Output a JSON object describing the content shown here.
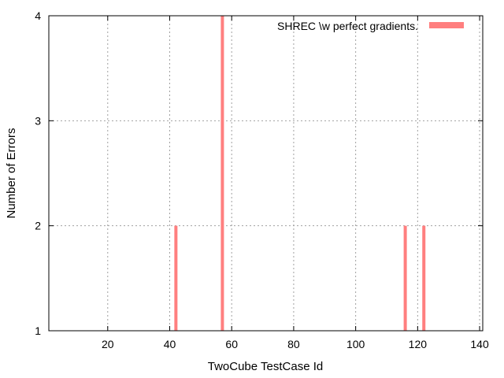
{
  "chart_data": {
    "type": "bar",
    "title": "",
    "xlabel": "TwoCube TestCase Id",
    "ylabel": "Number of Errors",
    "xlim": [
      1,
      141
    ],
    "ylim": [
      1,
      4
    ],
    "x_ticks": [
      20,
      40,
      60,
      80,
      100,
      120,
      140
    ],
    "y_ticks": [
      1,
      2,
      3,
      4
    ],
    "grid": true,
    "legend_position": "top-right",
    "series": [
      {
        "name": "SHREC \\w perfect gradients.",
        "color": "#ff7f7f",
        "x": [
          42,
          57,
          116,
          122
        ],
        "values": [
          2,
          4,
          2,
          2
        ]
      }
    ]
  }
}
